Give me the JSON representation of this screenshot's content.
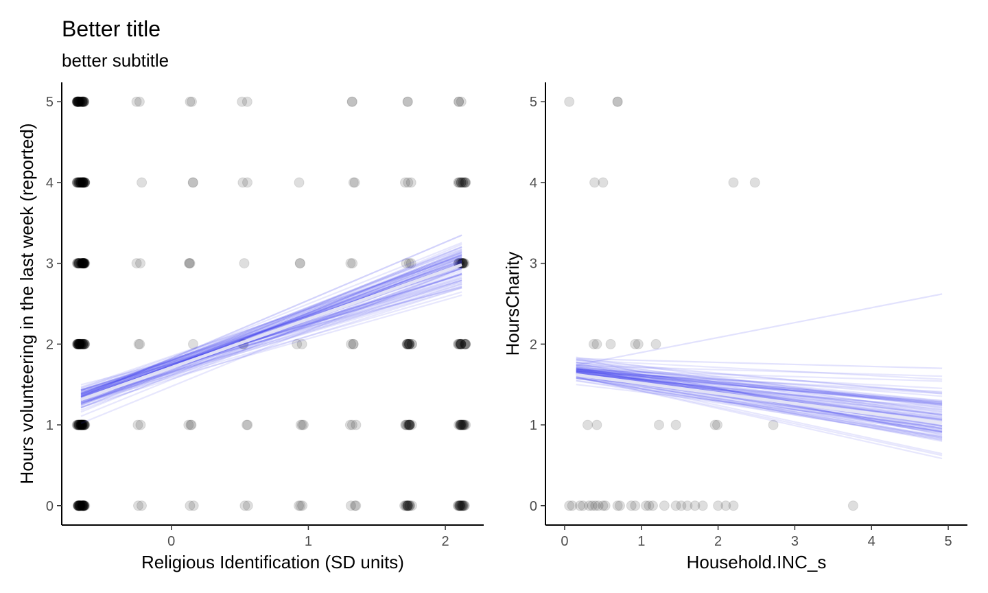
{
  "title": "Better title",
  "subtitle": "better subtitle",
  "chart_data": [
    {
      "type": "scatter",
      "xlabel": "Religious Identification (SD units)",
      "ylabel": "Hours volunteering in the last week (reported)",
      "xlim": [
        -0.8,
        2.28
      ],
      "ylim": [
        -0.24,
        5.24
      ],
      "xticks": [
        0,
        1,
        2
      ],
      "yticks": [
        0,
        1,
        2,
        3,
        4,
        5
      ],
      "grid": false,
      "x_levels": [
        -0.66,
        -0.24,
        0.15,
        0.54,
        0.94,
        1.33,
        1.73,
        2.12
      ],
      "point_density": [
        [
          12,
          2,
          2,
          2,
          3,
          3,
          4,
          5
        ],
        [
          12,
          2,
          3,
          2,
          3,
          3,
          4,
          5
        ],
        [
          12,
          2,
          1,
          2,
          2,
          3,
          4,
          5
        ],
        [
          12,
          2,
          3,
          1,
          2,
          2,
          3,
          5
        ],
        [
          12,
          1,
          2,
          2,
          1,
          2,
          3,
          4
        ],
        [
          12,
          2,
          2,
          2,
          0,
          2,
          2,
          3
        ]
      ],
      "fit_lines": {
        "count": 80,
        "x_range": [
          -0.66,
          2.12
        ],
        "intercept_mean": 1.72,
        "intercept_sd": 0.07,
        "slope_mean": 0.6,
        "slope_sd": 0.08,
        "color": "#3a3af0",
        "mean_color": "#e6e6f4",
        "mean_intercept": 1.71,
        "mean_slope": 0.6
      }
    },
    {
      "type": "scatter",
      "xlabel": "Household.INC_s",
      "ylabel": "HoursCharity",
      "xlim": [
        -0.25,
        5.25
      ],
      "ylim": [
        -0.24,
        5.24
      ],
      "xticks": [
        0,
        1,
        2,
        3,
        4,
        5
      ],
      "yticks": [
        0,
        1,
        2,
        3,
        4,
        5
      ],
      "grid": false,
      "points": [
        {
          "x": 0.06,
          "y": 5
        },
        {
          "x": 0.69,
          "y": 5
        },
        {
          "x": 0.69,
          "y": 5
        },
        {
          "x": 0.39,
          "y": 4
        },
        {
          "x": 0.5,
          "y": 4
        },
        {
          "x": 2.2,
          "y": 4
        },
        {
          "x": 2.48,
          "y": 4
        },
        {
          "x": 0.38,
          "y": 2
        },
        {
          "x": 0.42,
          "y": 2
        },
        {
          "x": 0.6,
          "y": 2
        },
        {
          "x": 0.92,
          "y": 2
        },
        {
          "x": 0.96,
          "y": 2
        },
        {
          "x": 1.19,
          "y": 2
        },
        {
          "x": 0.3,
          "y": 1
        },
        {
          "x": 0.42,
          "y": 1
        },
        {
          "x": 1.23,
          "y": 1
        },
        {
          "x": 1.45,
          "y": 1
        },
        {
          "x": 1.96,
          "y": 1
        },
        {
          "x": 1.99,
          "y": 1
        },
        {
          "x": 2.72,
          "y": 1
        },
        {
          "x": 0.06,
          "y": 0
        },
        {
          "x": 0.1,
          "y": 0
        },
        {
          "x": 0.2,
          "y": 0
        },
        {
          "x": 0.24,
          "y": 0
        },
        {
          "x": 0.32,
          "y": 0
        },
        {
          "x": 0.36,
          "y": 0
        },
        {
          "x": 0.4,
          "y": 0
        },
        {
          "x": 0.44,
          "y": 0
        },
        {
          "x": 0.5,
          "y": 0
        },
        {
          "x": 0.53,
          "y": 0
        },
        {
          "x": 0.69,
          "y": 0
        },
        {
          "x": 0.72,
          "y": 0
        },
        {
          "x": 0.87,
          "y": 0
        },
        {
          "x": 0.92,
          "y": 0
        },
        {
          "x": 1.06,
          "y": 0
        },
        {
          "x": 1.1,
          "y": 0
        },
        {
          "x": 1.15,
          "y": 0
        },
        {
          "x": 1.3,
          "y": 0
        },
        {
          "x": 1.45,
          "y": 0
        },
        {
          "x": 1.52,
          "y": 0
        },
        {
          "x": 1.6,
          "y": 0
        },
        {
          "x": 1.7,
          "y": 0
        },
        {
          "x": 1.8,
          "y": 0
        },
        {
          "x": 2.0,
          "y": 0
        },
        {
          "x": 2.1,
          "y": 0
        },
        {
          "x": 2.2,
          "y": 0
        },
        {
          "x": 3.76,
          "y": 0
        }
      ],
      "fit_lines": {
        "count": 80,
        "x_range": [
          0.15,
          4.92
        ],
        "intercept_mean": 1.69,
        "intercept_sd": 0.06,
        "slope_mean": -0.12,
        "slope_sd": 0.04,
        "color": "#3a3af0",
        "mean_color": "#e6e6f4",
        "mean_intercept": 1.64,
        "mean_slope": -0.125,
        "outlier_lines": [
          {
            "x0": 0.15,
            "y0": 1.74,
            "x1": 4.92,
            "y1": 2.62
          },
          {
            "x0": 0.15,
            "y0": 1.82,
            "x1": 4.92,
            "y1": 1.7
          }
        ]
      }
    }
  ]
}
